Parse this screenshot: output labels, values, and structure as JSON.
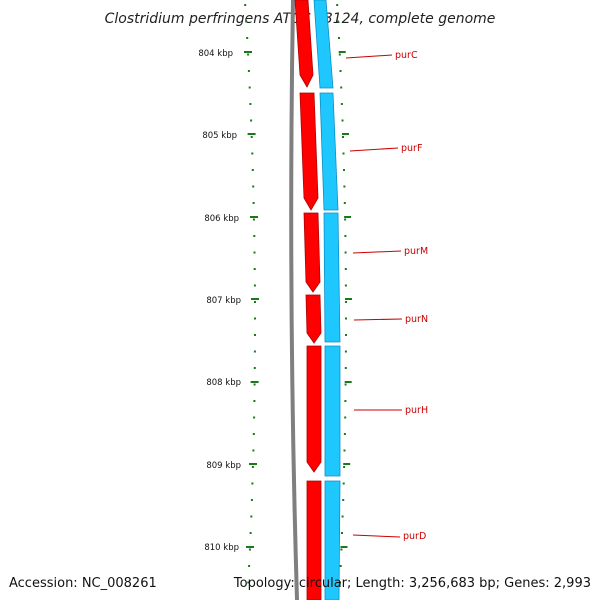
{
  "title": "Clostridium perfringens ATCC 13124, complete genome",
  "footer": {
    "accession": "Accession: NC_008261",
    "topology": "Topology: circular; Length: 3,256,683 bp; Genes: 2,993"
  },
  "scale": {
    "labels": [
      "804 kbp",
      "805 kbp",
      "806 kbp",
      "807 kbp",
      "808 kbp",
      "809 kbp",
      "810 kbp"
    ]
  },
  "genes": [
    {
      "name": "purC",
      "index": 0
    },
    {
      "name": "purF",
      "index": 1
    },
    {
      "name": "purM",
      "index": 2
    },
    {
      "name": "purN",
      "index": 3
    },
    {
      "name": "purH",
      "index": 4
    },
    {
      "name": "purD",
      "index": 5
    }
  ],
  "colors": {
    "backbone": "#7f7f7f",
    "cds": "#ff0000",
    "cds_outline": "#b00000",
    "gene_track": "#1ec8ff",
    "gene_track_outline": "#0a8fc8",
    "ticks": "#1a7a1a",
    "gene_label": "#cc0000"
  }
}
